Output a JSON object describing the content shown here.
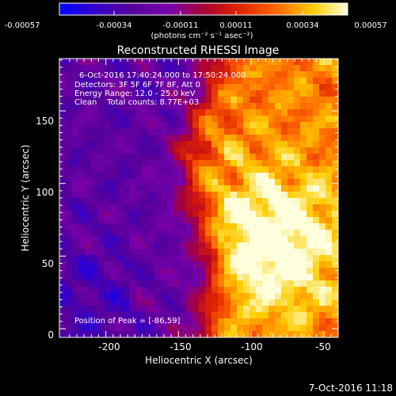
{
  "colorbar": {
    "ticks": [
      "-0.00057",
      "-0.00034",
      "-0.00011",
      "0.00011",
      "0.00034",
      "0.00057"
    ],
    "units_label": "(photons cm⁻² s⁻¹ asec⁻²)"
  },
  "plot": {
    "title": "Reconstructed RHESSI Image",
    "info": [
      "6-Oct-2016 17:40:24.000 to 17:50:24.000",
      "Detectors: 3F 5F 6F 7F 8F, Att 0",
      "Energy Range: 12.0 - 25.0 keV",
      "Clean    Total counts: 8.77E+03"
    ],
    "peak_label": "Position of Peak = [-86,59]",
    "footer_timestamp": "7-Oct-2016 11:18"
  },
  "chart_data": {
    "type": "heatmap",
    "title": "Reconstructed RHESSI Image",
    "xlabel": "Heliocentric X (arcsec)",
    "ylabel": "Heliocentric Y (arcsec)",
    "xlim": [
      -232,
      -40
    ],
    "ylim": [
      -6,
      186
    ],
    "x_ticks": [
      -200,
      -150,
      -100,
      -50
    ],
    "y_ticks": [
      0,
      50,
      100,
      150
    ],
    "peak": [
      -86,
      59
    ],
    "colorbar_range": [
      -0.00057,
      0.00057
    ],
    "colormap": "red-temperature",
    "colormap_stops": [
      "#0000ff",
      "#3300cc",
      "#55009a",
      "#7700aa",
      "#aa0033",
      "#dd2200",
      "#ff6600",
      "#ffcc00",
      "#ffffdd"
    ]
  }
}
